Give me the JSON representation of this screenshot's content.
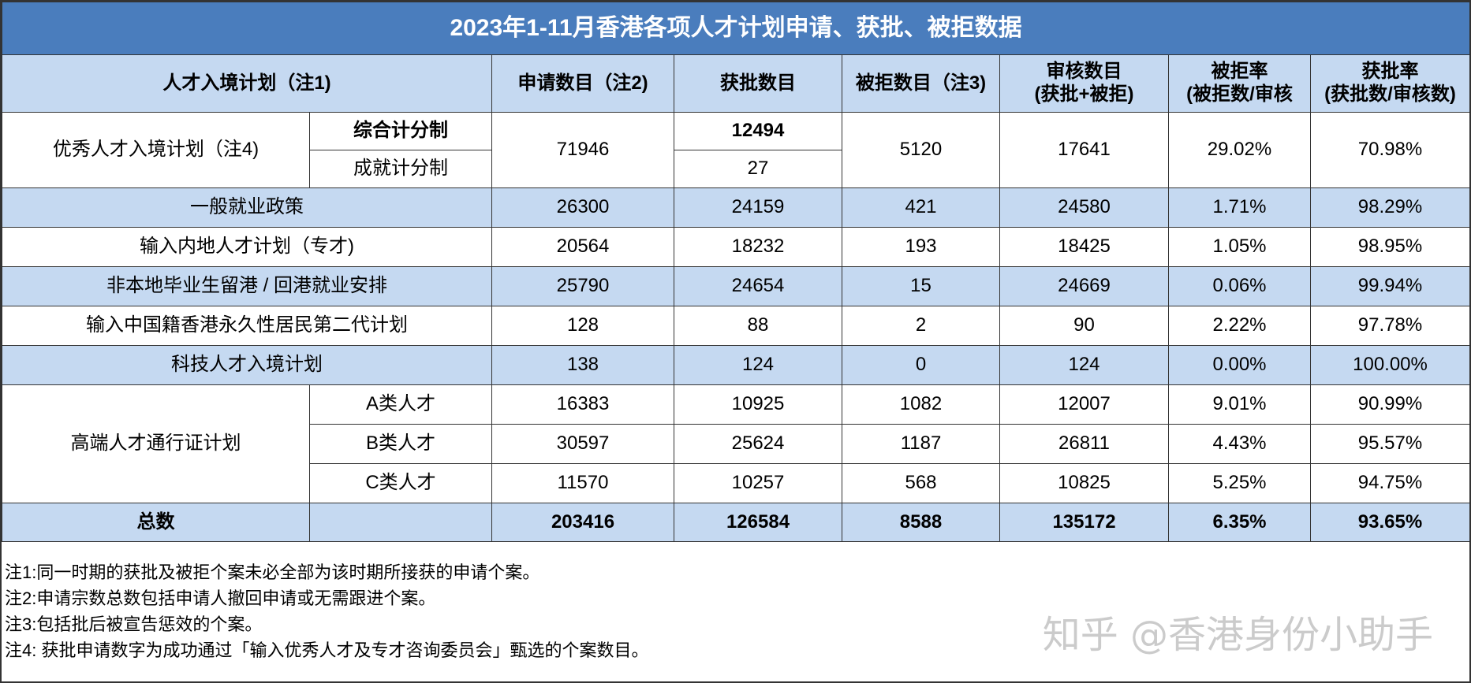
{
  "title": "2023年1-11月香港各项人才计划申请、获批、被拒数据",
  "headers": {
    "scheme": "人才入境计划（注1)",
    "applications": "申请数目（注2)",
    "approved": "获批数目",
    "rejected": "被拒数目（注3)",
    "reviewed_line1": "审核数目",
    "reviewed_line2": "(获批+被拒)",
    "reject_rate_line1": "被拒率",
    "reject_rate_line2": "(被拒数/审核",
    "approve_rate_line1": "获批率",
    "approve_rate_line2": "(获批数/审核数)"
  },
  "qmas": {
    "name": "优秀人才入境计划（注4)",
    "general_points": "综合计分制",
    "achievement_points": "成就计分制",
    "applications": "71946",
    "approved_general": "12494",
    "approved_achievement": "27",
    "rejected": "5120",
    "reviewed": "17641",
    "reject_rate": "29.02%",
    "approve_rate": "70.98%"
  },
  "rows": [
    {
      "name": "一般就业政策",
      "applications": "26300",
      "approved": "24159",
      "rejected": "421",
      "reviewed": "24580",
      "reject_rate": "1.71%",
      "approve_rate": "98.29%"
    },
    {
      "name": "输入内地人才计划（专才)",
      "applications": "20564",
      "approved": "18232",
      "rejected": "193",
      "reviewed": "18425",
      "reject_rate": "1.05%",
      "approve_rate": "98.95%"
    },
    {
      "name": "非本地毕业生留港 / 回港就业安排",
      "applications": "25790",
      "approved": "24654",
      "rejected": "15",
      "reviewed": "24669",
      "reject_rate": "0.06%",
      "approve_rate": "99.94%"
    },
    {
      "name": "输入中国籍香港永久性居民第二代计划",
      "applications": "128",
      "approved": "88",
      "rejected": "2",
      "reviewed": "90",
      "reject_rate": "2.22%",
      "approve_rate": "97.78%"
    },
    {
      "name": "科技人才入境计划",
      "applications": "138",
      "approved": "124",
      "rejected": "0",
      "reviewed": "124",
      "reject_rate": "0.00%",
      "approve_rate": "100.00%"
    }
  ],
  "ttps": {
    "name": "高端人才通行证计划",
    "subs": [
      {
        "name": "A类人才",
        "applications": "16383",
        "approved": "10925",
        "rejected": "1082",
        "reviewed": "12007",
        "reject_rate": "9.01%",
        "approve_rate": "90.99%"
      },
      {
        "name": "B类人才",
        "applications": "30597",
        "approved": "25624",
        "rejected": "1187",
        "reviewed": "26811",
        "reject_rate": "4.43%",
        "approve_rate": "95.57%"
      },
      {
        "name": "C类人才",
        "applications": "11570",
        "approved": "10257",
        "rejected": "568",
        "reviewed": "10825",
        "reject_rate": "5.25%",
        "approve_rate": "94.75%"
      }
    ]
  },
  "total": {
    "label": "总数",
    "applications": "203416",
    "approved": "126584",
    "rejected": "8588",
    "reviewed": "135172",
    "reject_rate": "6.35%",
    "approve_rate": "93.65%"
  },
  "notes": [
    "注1:同一时期的获批及被拒个案未必全部为该时期所接获的申请个案。",
    "注2:申请宗数总数包括申请人撤回申请或无需跟进个案。",
    "注3:包括批后被宣告惩效的个案。",
    "注4: 获批申请数字为成功通过「输入优秀人才及专才咨询委员会」甄选的个案数目。"
  ],
  "watermark": "知乎 @香港身份小助手",
  "colors": {
    "title_bg": "#4a7dbd",
    "row_blue": "#c5d9f1",
    "border": "#333333"
  }
}
